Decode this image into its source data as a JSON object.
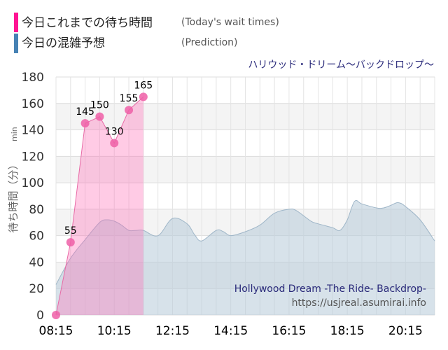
{
  "legend": {
    "today": {
      "label": "今日これまでの待ち時間",
      "sub": "(Today's wait times)",
      "color": "#ff1493"
    },
    "prediction": {
      "label": "今日の混雑予想",
      "sub": "(Prediction)",
      "color": "#4682b4"
    }
  },
  "ride_name_jp": "ハリウッド・ドリーム〜バックドロップ〜",
  "ride_name_en": "Hollywood Dream -The Ride- Backdrop-",
  "site": "https://usjreal.asumirai.info",
  "chart_data": {
    "type": "area",
    "ylabel": "待ち時間（分）",
    "ylabel_unit": "min",
    "ylim": [
      0,
      180
    ],
    "yticks": [
      0,
      20,
      40,
      60,
      80,
      100,
      120,
      140,
      160,
      180
    ],
    "xlim": [
      "08:15",
      "21:15"
    ],
    "xticks": [
      "08:15",
      "10:15",
      "12:15",
      "14:15",
      "16:15",
      "18:15",
      "20:15"
    ],
    "grid": true,
    "series": [
      {
        "name": "今日の混雑予想",
        "color": "#4682b4",
        "points": [
          [
            "08:15",
            23
          ],
          [
            "08:45",
            43
          ],
          [
            "09:15",
            57
          ],
          [
            "09:45",
            70
          ],
          [
            "10:00",
            72
          ],
          [
            "10:15",
            71
          ],
          [
            "10:30",
            68
          ],
          [
            "10:45",
            64
          ],
          [
            "11:00",
            64
          ],
          [
            "11:15",
            64
          ],
          [
            "11:45",
            60
          ],
          [
            "12:15",
            73
          ],
          [
            "12:45",
            69
          ],
          [
            "13:00",
            61
          ],
          [
            "13:15",
            56
          ],
          [
            "13:45",
            64
          ],
          [
            "14:00",
            63
          ],
          [
            "14:15",
            60
          ],
          [
            "14:45",
            63
          ],
          [
            "15:15",
            68
          ],
          [
            "15:45",
            77
          ],
          [
            "16:15",
            80
          ],
          [
            "16:30",
            79
          ],
          [
            "17:00",
            71
          ],
          [
            "17:15",
            69
          ],
          [
            "17:45",
            66
          ],
          [
            "18:00",
            64
          ],
          [
            "18:15",
            72
          ],
          [
            "18:30",
            86
          ],
          [
            "18:45",
            84
          ],
          [
            "19:15",
            81
          ],
          [
            "19:30",
            81
          ],
          [
            "19:45",
            83
          ],
          [
            "20:00",
            85
          ],
          [
            "20:15",
            82
          ],
          [
            "20:45",
            72
          ],
          [
            "21:15",
            56
          ]
        ]
      },
      {
        "name": "今日これまでの待ち時間",
        "color": "#ff1493",
        "points": [
          [
            "08:15",
            0
          ],
          [
            "08:45",
            55
          ],
          [
            "09:15",
            145
          ],
          [
            "09:45",
            150
          ],
          [
            "10:15",
            130
          ],
          [
            "10:45",
            155
          ],
          [
            "11:15",
            165
          ]
        ],
        "labels": [
          "",
          "55",
          "145",
          "150",
          "130",
          "155",
          "165"
        ]
      }
    ]
  }
}
